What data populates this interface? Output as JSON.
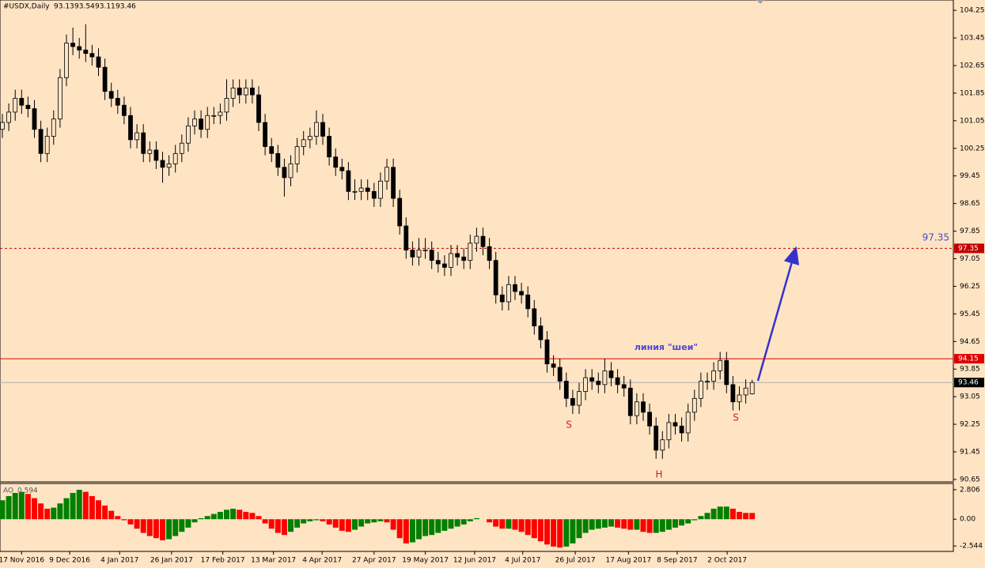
{
  "chart_data": [
    {
      "type": "candlestick",
      "title": "#USDX,Daily",
      "up_color": "#ffe4c4",
      "down_color": "#000000",
      "wick_color": "#000000",
      "ylim": [
        90.58,
        104.55
      ],
      "yticks": [
        104.25,
        103.45,
        102.65,
        101.85,
        101.05,
        100.25,
        99.45,
        98.65,
        97.85,
        97.05,
        96.25,
        95.45,
        94.65,
        93.85,
        93.05,
        92.25,
        91.45,
        90.65
      ],
      "xlabels": [
        {
          "value": 3,
          "label": "17 Nov 2016"
        },
        {
          "value": 10.5,
          "label": "9 Dec 2016"
        },
        {
          "value": 18.3,
          "label": "4 Jan 2017"
        },
        {
          "value": 26.4,
          "label": "26 Jan 2017"
        },
        {
          "value": 34.4,
          "label": "17 Feb 2017"
        },
        {
          "value": 42.3,
          "label": "13 Mar 2017"
        },
        {
          "value": 49.9,
          "label": "4 Apr 2017"
        },
        {
          "value": 58,
          "label": "27 Apr 2017"
        },
        {
          "value": 66,
          "label": "19 May 2017"
        },
        {
          "value": 73.7,
          "label": "12 Jun 2017"
        },
        {
          "value": 81.2,
          "label": "4 Jul 2017"
        },
        {
          "value": 89.4,
          "label": "26 Jul 2017"
        },
        {
          "value": 97.7,
          "label": "17 Aug 2017"
        },
        {
          "value": 105.3,
          "label": "8 Sep 2017"
        },
        {
          "value": 113.1,
          "label": "2 Oct 2017"
        }
      ],
      "levels": [
        {
          "value": 97.35,
          "color": "#c00000",
          "style": "dashed"
        },
        {
          "value": 94.15,
          "color": "#e00000",
          "style": "solid"
        }
      ],
      "annotations": [
        "линия \"шеи\"",
        "S",
        "H",
        "S"
      ],
      "candles": [
        [
          100.8,
          101.25,
          100.55,
          101.0
        ],
        [
          101.0,
          101.55,
          100.75,
          101.3
        ],
        [
          101.3,
          101.95,
          101.05,
          101.7
        ],
        [
          101.7,
          101.95,
          101.25,
          101.5
        ],
        [
          101.5,
          101.75,
          101.15,
          101.4
        ],
        [
          101.4,
          101.65,
          100.55,
          100.8
        ],
        [
          100.8,
          101.05,
          99.85,
          100.1
        ],
        [
          100.1,
          100.85,
          99.85,
          100.6
        ],
        [
          100.6,
          101.35,
          100.35,
          101.1
        ],
        [
          101.1,
          102.55,
          100.85,
          102.3
        ],
        [
          102.3,
          103.55,
          102.05,
          103.3
        ],
        [
          103.3,
          103.75,
          102.95,
          103.2
        ],
        [
          103.2,
          103.45,
          102.85,
          103.1
        ],
        [
          103.1,
          103.85,
          102.75,
          103.0
        ],
        [
          103.0,
          103.25,
          102.65,
          102.9
        ],
        [
          102.9,
          103.15,
          102.35,
          102.6
        ],
        [
          102.6,
          102.85,
          101.65,
          101.9
        ],
        [
          101.9,
          102.15,
          101.45,
          101.7
        ],
        [
          101.7,
          101.95,
          101.25,
          101.5
        ],
        [
          101.5,
          101.75,
          100.95,
          101.2
        ],
        [
          101.2,
          101.45,
          100.25,
          100.5
        ],
        [
          100.5,
          100.95,
          100.25,
          100.7
        ],
        [
          100.7,
          100.95,
          99.85,
          100.1
        ],
        [
          100.1,
          100.45,
          99.85,
          100.2
        ],
        [
          100.2,
          100.45,
          99.65,
          99.9
        ],
        [
          99.9,
          100.15,
          99.25,
          99.7
        ],
        [
          99.7,
          100.05,
          99.45,
          99.8
        ],
        [
          99.8,
          100.35,
          99.55,
          100.1
        ],
        [
          100.1,
          100.65,
          99.85,
          100.4
        ],
        [
          100.4,
          101.15,
          100.15,
          100.9
        ],
        [
          100.9,
          101.35,
          100.65,
          101.1
        ],
        [
          101.1,
          101.35,
          100.55,
          100.8
        ],
        [
          100.8,
          101.45,
          100.55,
          101.2
        ],
        [
          101.2,
          101.45,
          100.95,
          101.2
        ],
        [
          101.2,
          101.55,
          100.95,
          101.3
        ],
        [
          101.3,
          102.25,
          101.05,
          101.7
        ],
        [
          101.7,
          102.25,
          101.45,
          102.0
        ],
        [
          102.0,
          102.25,
          101.55,
          101.8
        ],
        [
          101.8,
          102.25,
          101.55,
          102.0
        ],
        [
          102.0,
          102.25,
          101.55,
          101.8
        ],
        [
          101.8,
          102.05,
          100.75,
          101.0
        ],
        [
          101.0,
          101.25,
          100.05,
          100.3
        ],
        [
          100.3,
          100.55,
          99.85,
          100.1
        ],
        [
          100.1,
          100.35,
          99.45,
          99.7
        ],
        [
          99.7,
          99.95,
          98.85,
          99.4
        ],
        [
          99.4,
          100.05,
          99.15,
          99.8
        ],
        [
          99.8,
          100.55,
          99.55,
          100.3
        ],
        [
          100.3,
          100.75,
          100.05,
          100.5
        ],
        [
          100.5,
          100.85,
          100.25,
          100.6
        ],
        [
          100.6,
          101.35,
          100.35,
          101.0
        ],
        [
          101.0,
          101.25,
          100.35,
          100.6
        ],
        [
          100.6,
          100.85,
          99.75,
          100.0
        ],
        [
          100.0,
          100.25,
          99.45,
          99.7
        ],
        [
          99.7,
          99.95,
          99.35,
          99.6
        ],
        [
          99.6,
          99.85,
          98.75,
          99.0
        ],
        [
          99.0,
          99.35,
          98.75,
          99.0
        ],
        [
          99.0,
          99.35,
          98.75,
          99.1
        ],
        [
          99.1,
          99.35,
          98.75,
          99.0
        ],
        [
          99.0,
          99.25,
          98.55,
          98.8
        ],
        [
          98.8,
          99.55,
          98.55,
          99.3
        ],
        [
          99.3,
          99.95,
          99.05,
          99.7
        ],
        [
          99.7,
          99.95,
          98.55,
          98.8
        ],
        [
          98.8,
          99.05,
          97.75,
          98.0
        ],
        [
          98.0,
          98.25,
          97.05,
          97.3
        ],
        [
          97.3,
          97.55,
          96.85,
          97.1
        ],
        [
          97.1,
          97.65,
          96.85,
          97.3
        ],
        [
          97.3,
          97.65,
          97.05,
          97.3
        ],
        [
          97.3,
          97.55,
          96.75,
          97.0
        ],
        [
          97.0,
          97.25,
          96.65,
          96.9
        ],
        [
          96.9,
          97.15,
          96.55,
          96.8
        ],
        [
          96.8,
          97.45,
          96.55,
          97.2
        ],
        [
          97.2,
          97.45,
          96.85,
          97.1
        ],
        [
          97.1,
          97.35,
          96.75,
          97.0
        ],
        [
          97.0,
          97.75,
          96.75,
          97.5
        ],
        [
          97.5,
          97.95,
          97.25,
          97.7
        ],
        [
          97.7,
          97.95,
          97.15,
          97.4
        ],
        [
          97.4,
          97.65,
          96.75,
          97.0
        ],
        [
          97.0,
          97.25,
          95.75,
          96.0
        ],
        [
          96.0,
          96.25,
          95.55,
          95.8
        ],
        [
          95.8,
          96.55,
          95.55,
          96.3
        ],
        [
          96.3,
          96.55,
          95.85,
          96.1
        ],
        [
          96.1,
          96.35,
          95.75,
          96.0
        ],
        [
          96.0,
          96.25,
          95.35,
          95.6
        ],
        [
          95.6,
          95.85,
          94.85,
          95.1
        ],
        [
          95.1,
          95.35,
          94.45,
          94.7
        ],
        [
          94.7,
          94.95,
          93.75,
          94.0
        ],
        [
          94.0,
          94.25,
          93.65,
          93.9
        ],
        [
          93.9,
          94.15,
          93.25,
          93.5
        ],
        [
          93.5,
          93.75,
          92.75,
          93.0
        ],
        [
          93.0,
          93.25,
          92.55,
          92.8
        ],
        [
          92.8,
          93.45,
          92.55,
          93.2
        ],
        [
          93.2,
          93.85,
          92.95,
          93.6
        ],
        [
          93.6,
          93.85,
          93.25,
          93.5
        ],
        [
          93.5,
          93.75,
          93.15,
          93.4
        ],
        [
          93.4,
          94.15,
          93.15,
          93.8
        ],
        [
          93.8,
          94.05,
          93.35,
          93.6
        ],
        [
          93.6,
          93.85,
          93.15,
          93.4
        ],
        [
          93.4,
          93.65,
          93.05,
          93.3
        ],
        [
          93.3,
          93.55,
          92.25,
          92.5
        ],
        [
          92.5,
          93.15,
          92.25,
          92.9
        ],
        [
          92.9,
          93.15,
          92.35,
          92.6
        ],
        [
          92.6,
          92.85,
          91.95,
          92.2
        ],
        [
          92.2,
          92.45,
          91.25,
          91.5
        ],
        [
          91.5,
          92.05,
          91.25,
          91.8
        ],
        [
          91.8,
          92.55,
          91.55,
          92.3
        ],
        [
          92.3,
          92.55,
          91.95,
          92.2
        ],
        [
          92.2,
          92.45,
          91.75,
          92.0
        ],
        [
          92.0,
          92.85,
          91.75,
          92.6
        ],
        [
          92.6,
          93.25,
          92.35,
          93.0
        ],
        [
          93.0,
          93.75,
          92.75,
          93.5
        ],
        [
          93.5,
          93.75,
          93.25,
          93.5
        ],
        [
          93.5,
          94.05,
          93.25,
          93.8
        ],
        [
          93.8,
          94.35,
          93.55,
          94.1
        ],
        [
          94.1,
          94.35,
          93.15,
          93.4
        ],
        [
          93.4,
          93.65,
          92.65,
          92.9
        ],
        [
          92.9,
          93.35,
          92.65,
          93.1
        ],
        [
          93.1,
          93.55,
          92.85,
          93.3
        ],
        [
          93.13,
          93.54,
          93.11,
          93.46
        ]
      ]
    },
    {
      "type": "histogram",
      "name": "AO",
      "up_color": "#008000",
      "down_color": "#ff0000",
      "ylim": [
        -3.06,
        3.397
      ],
      "yticks": [
        2.806,
        {
          "value": 0,
          "label": "0.00"
        },
        -2.544
      ],
      "values": [
        1.8,
        2.2,
        2.5,
        2.6,
        2.4,
        2.0,
        1.5,
        1.0,
        1.1,
        1.5,
        2.0,
        2.5,
        2.8,
        2.6,
        2.2,
        1.8,
        1.3,
        0.8,
        0.3,
        -0.1,
        -0.5,
        -0.9,
        -1.3,
        -1.6,
        -1.8,
        -2.0,
        -1.9,
        -1.6,
        -1.2,
        -0.8,
        -0.3,
        0.1,
        0.3,
        0.5,
        0.7,
        0.9,
        1.0,
        0.9,
        0.7,
        0.6,
        0.3,
        -0.4,
        -0.9,
        -1.3,
        -1.5,
        -1.2,
        -0.8,
        -0.4,
        -0.2,
        -0.1,
        -0.2,
        -0.5,
        -0.8,
        -1.1,
        -1.2,
        -1.0,
        -0.7,
        -0.4,
        -0.3,
        -0.2,
        -0.3,
        -1.0,
        -1.8,
        -2.3,
        -2.2,
        -1.9,
        -1.6,
        -1.5,
        -1.3,
        -1.1,
        -0.9,
        -0.7,
        -0.5,
        -0.2,
        0.1,
        0.0,
        -0.3,
        -0.7,
        -0.9,
        -0.9,
        -1.0,
        -1.2,
        -1.5,
        -1.8,
        -2.1,
        -2.4,
        -2.6,
        -2.7,
        -2.6,
        -2.3,
        -1.8,
        -1.3,
        -1.0,
        -0.9,
        -0.8,
        -0.7,
        -0.8,
        -0.9,
        -1.0,
        -1.0,
        -1.2,
        -1.3,
        -1.3,
        -1.2,
        -1.0,
        -0.8,
        -0.6,
        -0.4,
        -0.1,
        0.3,
        0.6,
        1.0,
        1.2,
        1.2,
        1.0,
        0.7,
        0.6,
        0.594
      ]
    }
  ]
}
